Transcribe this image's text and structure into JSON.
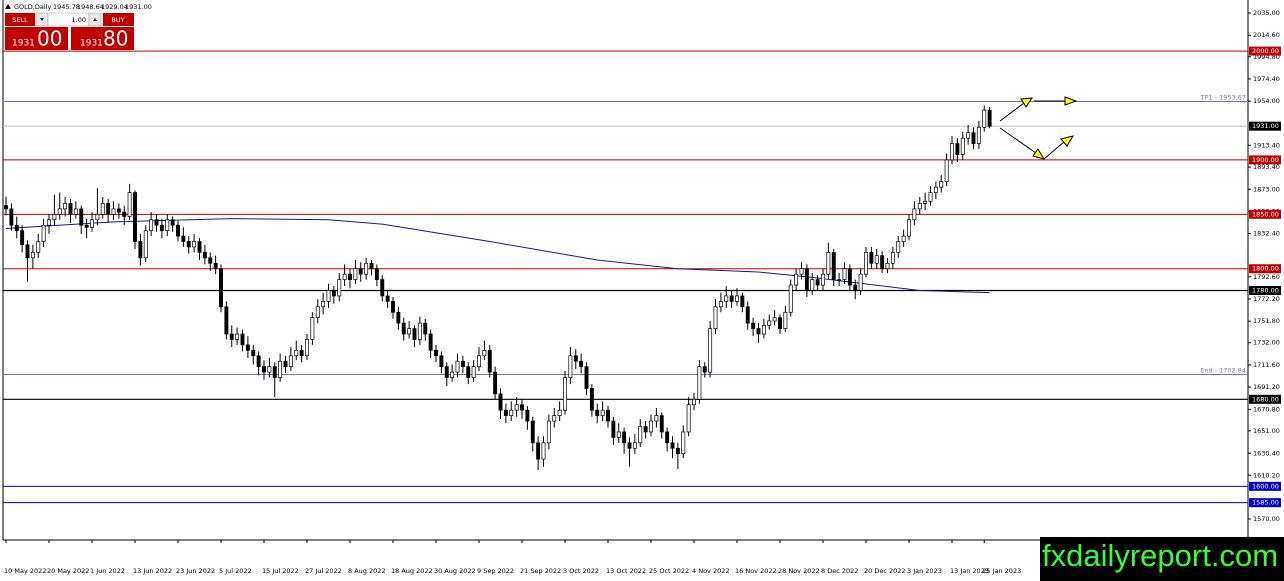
{
  "chart_data": {
    "type": "candlestick",
    "title": "GOLD,Daily",
    "header_ohlc": [
      "1945.78",
      "1948.64",
      "1929.04",
      "1931.00"
    ],
    "up_color": "#ffffff",
    "down_color": "#000000",
    "ylim": [
      1550.7,
      2044.2
    ],
    "yticks": [
      {
        "value": 2035,
        "label": "2035.00"
      },
      {
        "value": 2014.6,
        "label": "2014.60"
      },
      {
        "value": 1994.8,
        "label": "1994.80"
      },
      {
        "value": 1974.4,
        "label": "1974.40"
      },
      {
        "value": 1954,
        "label": "1954.00"
      },
      {
        "value": 1913.4,
        "label": "1913.40"
      },
      {
        "value": 1893.4,
        "label": "1893.40"
      },
      {
        "value": 1873,
        "label": "1873.00"
      },
      {
        "value": 1852.8,
        "label": "1852.80"
      },
      {
        "value": 1832.4,
        "label": "1832.40"
      },
      {
        "value": 1792.6,
        "label": "1792.60"
      },
      {
        "value": 1772.2,
        "label": "1772.20"
      },
      {
        "value": 1751.8,
        "label": "1751.80"
      },
      {
        "value": 1732,
        "label": "1732.00"
      },
      {
        "value": 1711.6,
        "label": "1711.60"
      },
      {
        "value": 1691.2,
        "label": "1691.20"
      },
      {
        "value": 1670.8,
        "label": "1670.80"
      },
      {
        "value": 1651,
        "label": "1651.00"
      },
      {
        "value": 1630.4,
        "label": "1630.40"
      },
      {
        "value": 1610.2,
        "label": "1610.20"
      },
      {
        "value": 1570,
        "label": "1570.00"
      }
    ],
    "categories": [
      "10 May 2022",
      null,
      null,
      null,
      null,
      null,
      null,
      null,
      "20 May 2022",
      null,
      null,
      null,
      null,
      null,
      null,
      null,
      "1 Jun 2022",
      null,
      null,
      null,
      null,
      null,
      null,
      null,
      "13 Jun 2022",
      null,
      null,
      null,
      null,
      null,
      null,
      null,
      "23 Jun 2022",
      null,
      null,
      null,
      null,
      null,
      null,
      null,
      "5 Jul 2022",
      null,
      null,
      null,
      null,
      null,
      null,
      null,
      "15 Jul 2022",
      null,
      null,
      null,
      null,
      null,
      null,
      null,
      "27 Jul 2022",
      null,
      null,
      null,
      null,
      null,
      null,
      null,
      "8 Aug 2022",
      null,
      null,
      null,
      null,
      null,
      null,
      null,
      "18 Aug 2022",
      null,
      null,
      null,
      null,
      null,
      null,
      null,
      "30 Aug 2022",
      null,
      null,
      null,
      null,
      null,
      null,
      null,
      "9 Sep 2022",
      null,
      null,
      null,
      null,
      null,
      null,
      null,
      "21 Sep 2022",
      null,
      null,
      null,
      null,
      null,
      null,
      null,
      "3 Oct 2022",
      null,
      null,
      null,
      null,
      null,
      null,
      null,
      "13 Oct 2022",
      null,
      null,
      null,
      null,
      null,
      null,
      null,
      "25 Oct 2022",
      null,
      null,
      null,
      null,
      null,
      null,
      null,
      "4 Nov 2022",
      null,
      null,
      null,
      null,
      null,
      null,
      null,
      "16 Nov 2022",
      null,
      null,
      null,
      null,
      null,
      null,
      null,
      "28 Nov 2022",
      null,
      null,
      null,
      null,
      null,
      null,
      null,
      "8 Dec 2022",
      null,
      null,
      null,
      null,
      null,
      null,
      null,
      "20 Dec 2022",
      null,
      null,
      null,
      null,
      null,
      null,
      null,
      "3 Jan 2023",
      null,
      null,
      null,
      null,
      null,
      null,
      null,
      "13 Jan 2023",
      null,
      null,
      null,
      null,
      null,
      "25 Jan 2023",
      null
    ],
    "candles": [
      [
        1858,
        1866,
        1849,
        1855
      ],
      [
        1855,
        1860,
        1835,
        1840
      ],
      [
        1840,
        1848,
        1828,
        1835
      ],
      [
        1835,
        1840,
        1815,
        1822
      ],
      [
        1822,
        1826,
        1788,
        1810
      ],
      [
        1810,
        1822,
        1800,
        1815
      ],
      [
        1815,
        1832,
        1810,
        1825
      ],
      [
        1825,
        1846,
        1820,
        1840
      ],
      [
        1840,
        1850,
        1832,
        1845
      ],
      [
        1845,
        1868,
        1840,
        1850
      ],
      [
        1850,
        1870,
        1845,
        1855
      ],
      [
        1855,
        1866,
        1848,
        1860
      ],
      [
        1860,
        1864,
        1842,
        1850
      ],
      [
        1850,
        1862,
        1846,
        1855
      ],
      [
        1855,
        1858,
        1832,
        1840
      ],
      [
        1840,
        1846,
        1828,
        1838
      ],
      [
        1838,
        1852,
        1834,
        1845
      ],
      [
        1845,
        1874,
        1840,
        1850
      ],
      [
        1850,
        1866,
        1846,
        1860
      ],
      [
        1860,
        1864,
        1842,
        1850
      ],
      [
        1850,
        1862,
        1845,
        1855
      ],
      [
        1855,
        1860,
        1846,
        1852
      ],
      [
        1852,
        1858,
        1840,
        1848
      ],
      [
        1848,
        1878,
        1845,
        1870
      ],
      [
        1870,
        1872,
        1818,
        1825
      ],
      [
        1825,
        1832,
        1803,
        1810
      ],
      [
        1810,
        1840,
        1806,
        1835
      ],
      [
        1835,
        1852,
        1830,
        1845
      ],
      [
        1845,
        1850,
        1834,
        1840
      ],
      [
        1840,
        1846,
        1828,
        1835
      ],
      [
        1835,
        1850,
        1830,
        1845
      ],
      [
        1845,
        1848,
        1834,
        1840
      ],
      [
        1840,
        1844,
        1825,
        1830
      ],
      [
        1830,
        1838,
        1820,
        1825
      ],
      [
        1825,
        1830,
        1814,
        1820
      ],
      [
        1820,
        1832,
        1815,
        1825
      ],
      [
        1825,
        1828,
        1808,
        1815
      ],
      [
        1815,
        1822,
        1804,
        1810
      ],
      [
        1810,
        1815,
        1798,
        1805
      ],
      [
        1805,
        1812,
        1795,
        1800
      ],
      [
        1800,
        1804,
        1760,
        1765
      ],
      [
        1765,
        1770,
        1735,
        1740
      ],
      [
        1740,
        1748,
        1728,
        1735
      ],
      [
        1735,
        1746,
        1730,
        1740
      ],
      [
        1740,
        1744,
        1724,
        1730
      ],
      [
        1730,
        1738,
        1718,
        1725
      ],
      [
        1725,
        1730,
        1712,
        1720
      ],
      [
        1720,
        1724,
        1702,
        1710
      ],
      [
        1710,
        1716,
        1698,
        1705
      ],
      [
        1705,
        1718,
        1700,
        1710
      ],
      [
        1710,
        1714,
        1682,
        1700
      ],
      [
        1700,
        1722,
        1696,
        1715
      ],
      [
        1715,
        1720,
        1704,
        1710
      ],
      [
        1710,
        1728,
        1706,
        1720
      ],
      [
        1720,
        1734,
        1716,
        1725
      ],
      [
        1725,
        1730,
        1714,
        1720
      ],
      [
        1720,
        1740,
        1716,
        1735
      ],
      [
        1735,
        1760,
        1730,
        1755
      ],
      [
        1755,
        1772,
        1750,
        1765
      ],
      [
        1765,
        1778,
        1758,
        1770
      ],
      [
        1770,
        1786,
        1764,
        1780
      ],
      [
        1780,
        1784,
        1768,
        1775
      ],
      [
        1775,
        1796,
        1770,
        1790
      ],
      [
        1790,
        1804,
        1784,
        1795
      ],
      [
        1795,
        1800,
        1782,
        1790
      ],
      [
        1790,
        1808,
        1786,
        1800
      ],
      [
        1800,
        1806,
        1788,
        1795
      ],
      [
        1795,
        1810,
        1790,
        1805
      ],
      [
        1805,
        1808,
        1794,
        1800
      ],
      [
        1800,
        1804,
        1784,
        1790
      ],
      [
        1790,
        1794,
        1770,
        1775
      ],
      [
        1775,
        1780,
        1764,
        1770
      ],
      [
        1770,
        1774,
        1754,
        1760
      ],
      [
        1760,
        1765,
        1744,
        1750
      ],
      [
        1750,
        1755,
        1734,
        1740
      ],
      [
        1740,
        1752,
        1736,
        1745
      ],
      [
        1745,
        1748,
        1728,
        1735
      ],
      [
        1735,
        1756,
        1730,
        1750
      ],
      [
        1750,
        1754,
        1734,
        1740
      ],
      [
        1740,
        1744,
        1718,
        1725
      ],
      [
        1725,
        1730,
        1714,
        1720
      ],
      [
        1720,
        1724,
        1704,
        1710
      ],
      [
        1710,
        1714,
        1692,
        1700
      ],
      [
        1700,
        1712,
        1696,
        1705
      ],
      [
        1705,
        1722,
        1700,
        1715
      ],
      [
        1715,
        1720,
        1704,
        1710
      ],
      [
        1710,
        1714,
        1694,
        1700
      ],
      [
        1700,
        1716,
        1696,
        1710
      ],
      [
        1710,
        1728,
        1706,
        1720
      ],
      [
        1720,
        1734,
        1716,
        1725
      ],
      [
        1725,
        1730,
        1700,
        1705
      ],
      [
        1705,
        1710,
        1680,
        1685
      ],
      [
        1685,
        1690,
        1662,
        1670
      ],
      [
        1670,
        1676,
        1658,
        1665
      ],
      [
        1665,
        1678,
        1660,
        1670
      ],
      [
        1670,
        1682,
        1664,
        1675
      ],
      [
        1675,
        1680,
        1662,
        1670
      ],
      [
        1670,
        1674,
        1652,
        1660
      ],
      [
        1660,
        1664,
        1632,
        1640
      ],
      [
        1640,
        1646,
        1615,
        1625
      ],
      [
        1625,
        1646,
        1618,
        1640
      ],
      [
        1640,
        1666,
        1634,
        1660
      ],
      [
        1660,
        1672,
        1654,
        1665
      ],
      [
        1665,
        1678,
        1660,
        1670
      ],
      [
        1670,
        1706,
        1666,
        1700
      ],
      [
        1700,
        1728,
        1694,
        1720
      ],
      [
        1720,
        1726,
        1708,
        1715
      ],
      [
        1715,
        1722,
        1704,
        1710
      ],
      [
        1710,
        1714,
        1684,
        1690
      ],
      [
        1690,
        1694,
        1664,
        1670
      ],
      [
        1670,
        1676,
        1658,
        1665
      ],
      [
        1665,
        1678,
        1660,
        1670
      ],
      [
        1670,
        1674,
        1654,
        1660
      ],
      [
        1660,
        1664,
        1638,
        1645
      ],
      [
        1645,
        1658,
        1640,
        1650
      ],
      [
        1650,
        1654,
        1630,
        1640
      ],
      [
        1640,
        1645,
        1618,
        1635
      ],
      [
        1635,
        1648,
        1630,
        1640
      ],
      [
        1640,
        1662,
        1636,
        1655
      ],
      [
        1655,
        1660,
        1644,
        1650
      ],
      [
        1650,
        1666,
        1646,
        1660
      ],
      [
        1660,
        1672,
        1654,
        1665
      ],
      [
        1665,
        1668,
        1644,
        1650
      ],
      [
        1650,
        1654,
        1632,
        1640
      ],
      [
        1640,
        1646,
        1626,
        1635
      ],
      [
        1635,
        1640,
        1616,
        1630
      ],
      [
        1630,
        1656,
        1626,
        1650
      ],
      [
        1650,
        1682,
        1646,
        1675
      ],
      [
        1675,
        1686,
        1670,
        1680
      ],
      [
        1680,
        1716,
        1676,
        1710
      ],
      [
        1710,
        1714,
        1700,
        1705
      ],
      [
        1705,
        1752,
        1700,
        1745
      ],
      [
        1745,
        1772,
        1740,
        1765
      ],
      [
        1765,
        1778,
        1760,
        1770
      ],
      [
        1770,
        1784,
        1764,
        1775
      ],
      [
        1775,
        1780,
        1764,
        1770
      ],
      [
        1770,
        1782,
        1766,
        1775
      ],
      [
        1775,
        1778,
        1760,
        1765
      ],
      [
        1765,
        1770,
        1744,
        1750
      ],
      [
        1750,
        1755,
        1738,
        1745
      ],
      [
        1745,
        1750,
        1732,
        1740
      ],
      [
        1740,
        1754,
        1736,
        1748
      ],
      [
        1748,
        1758,
        1744,
        1752
      ],
      [
        1752,
        1762,
        1748,
        1755
      ],
      [
        1755,
        1758,
        1740,
        1745
      ],
      [
        1745,
        1766,
        1742,
        1760
      ],
      [
        1760,
        1790,
        1756,
        1785
      ],
      [
        1785,
        1800,
        1780,
        1795
      ],
      [
        1795,
        1806,
        1790,
        1800
      ],
      [
        1800,
        1804,
        1774,
        1780
      ],
      [
        1780,
        1796,
        1776,
        1790
      ],
      [
        1790,
        1794,
        1780,
        1785
      ],
      [
        1785,
        1800,
        1780,
        1795
      ],
      [
        1795,
        1824,
        1790,
        1815
      ],
      [
        1815,
        1818,
        1784,
        1790
      ],
      [
        1790,
        1796,
        1784,
        1790
      ],
      [
        1790,
        1806,
        1786,
        1800
      ],
      [
        1800,
        1804,
        1780,
        1785
      ],
      [
        1785,
        1790,
        1772,
        1780
      ],
      [
        1780,
        1800,
        1776,
        1795
      ],
      [
        1795,
        1820,
        1792,
        1815
      ],
      [
        1815,
        1820,
        1800,
        1805
      ],
      [
        1805,
        1818,
        1800,
        1812
      ],
      [
        1812,
        1816,
        1796,
        1800
      ],
      [
        1800,
        1810,
        1796,
        1805
      ],
      [
        1805,
        1820,
        1800,
        1815
      ],
      [
        1815,
        1830,
        1810,
        1825
      ],
      [
        1825,
        1836,
        1820,
        1830
      ],
      [
        1830,
        1850,
        1826,
        1845
      ],
      [
        1845,
        1862,
        1840,
        1855
      ],
      [
        1855,
        1866,
        1850,
        1860
      ],
      [
        1860,
        1870,
        1854,
        1862
      ],
      [
        1862,
        1876,
        1858,
        1870
      ],
      [
        1870,
        1880,
        1864,
        1875
      ],
      [
        1875,
        1886,
        1870,
        1880
      ],
      [
        1880,
        1906,
        1876,
        1900
      ],
      [
        1900,
        1922,
        1896,
        1915
      ],
      [
        1915,
        1920,
        1898,
        1905
      ],
      [
        1905,
        1926,
        1900,
        1920
      ],
      [
        1920,
        1932,
        1914,
        1925
      ],
      [
        1925,
        1930,
        1910,
        1915
      ],
      [
        1915,
        1936,
        1910,
        1930
      ],
      [
        1930,
        1950,
        1926,
        1945.78
      ],
      [
        1945.78,
        1948.64,
        1929.04,
        1931
      ]
    ],
    "ma": {
      "color": "#1a1a8c",
      "x": [
        0,
        20,
        42,
        60,
        70,
        90,
        110,
        125,
        140,
        150,
        160,
        170,
        183
      ],
      "values": [
        1837,
        1843,
        1846,
        1845,
        1841,
        1825,
        1808,
        1800,
        1797,
        1792,
        1786,
        1780,
        1778
      ]
    },
    "levels": [
      {
        "value": 2000,
        "label": "2000.00",
        "color": "#c00000",
        "box": true
      },
      {
        "value": 1953.67,
        "label": "TP1 - 1953.67",
        "color": "#7878c0",
        "box": false
      },
      {
        "value": 1931,
        "label": "1931.00",
        "color": "#c0c0c0",
        "box": true
      },
      {
        "value": 1900,
        "label": "1900.00",
        "color": "#c00000",
        "box": true
      },
      {
        "value": 1850,
        "label": "1850.00",
        "color": "#c00000",
        "box": true
      },
      {
        "value": 1800,
        "label": "1800.00",
        "color": "#c00000",
        "box": true
      },
      {
        "value": 1780,
        "label": "1780.00",
        "color": "#000000",
        "box": true
      },
      {
        "value": 1702.84,
        "label": "End - 1702.84",
        "color": "#7878c0",
        "box": false
      },
      {
        "value": 1680,
        "label": "1680.00",
        "color": "#000000",
        "box": true
      },
      {
        "value": 1600,
        "label": "1600.00",
        "color": "#0000cc",
        "box": true
      },
      {
        "value": 1585,
        "label": "1585.00",
        "color": "#0000cc",
        "box": true
      }
    ]
  },
  "trade_panel": {
    "sell": "SELL",
    "buy": "BUY",
    "lot": "1.00",
    "bid": [
      "1931",
      "00"
    ],
    "ask": [
      "1931",
      "80"
    ]
  },
  "watermark": "fxdailyreport.com"
}
